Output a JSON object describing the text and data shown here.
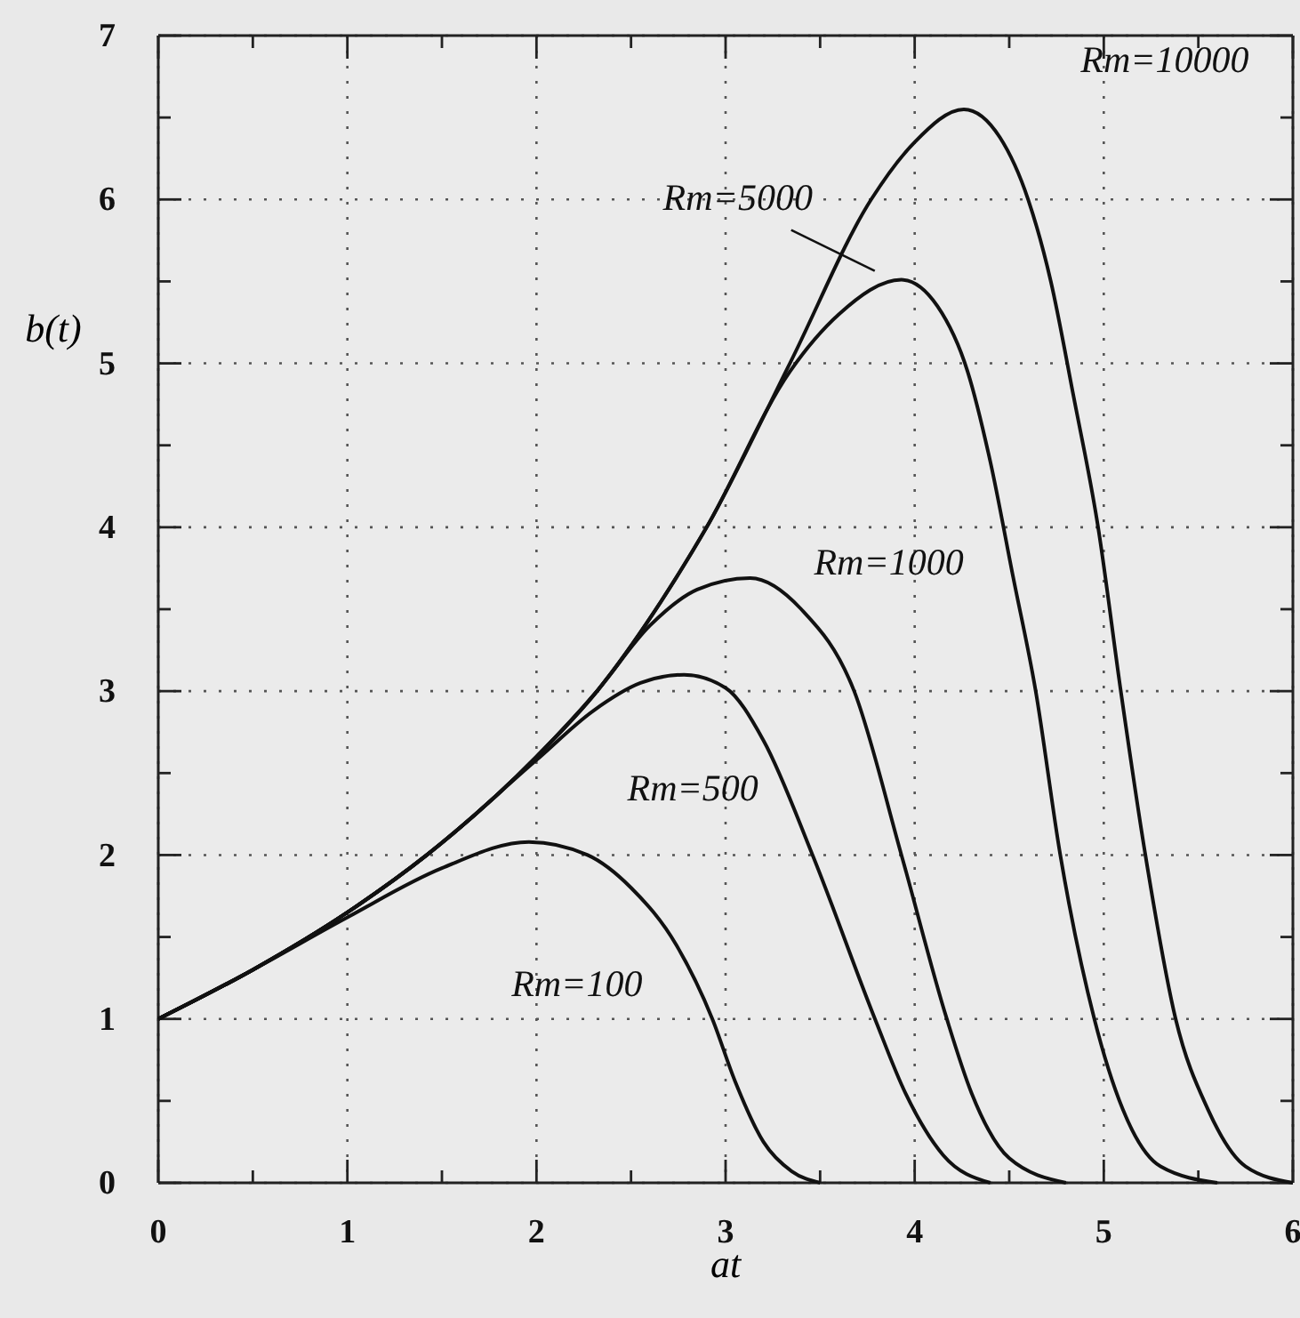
{
  "chart_data": {
    "type": "line",
    "xlabel": "at",
    "ylabel": "b(t)",
    "xlim": [
      0,
      6
    ],
    "ylim": [
      0,
      7
    ],
    "xticks": [
      0,
      {
        "value": 0.5,
        "label": null
      },
      1,
      {
        "value": 1.5,
        "label": null
      },
      2,
      {
        "value": 2.5,
        "label": null
      },
      3,
      {
        "value": 3.5,
        "label": null
      },
      4,
      {
        "value": 4.5,
        "label": null
      },
      5,
      {
        "value": 5.5,
        "label": null
      },
      6
    ],
    "yticks": [
      0,
      {
        "value": 0.5,
        "label": null
      },
      1,
      {
        "value": 1.5,
        "label": null
      },
      2,
      {
        "value": 2.5,
        "label": null
      },
      3,
      {
        "value": 3.5,
        "label": null
      },
      4,
      {
        "value": 4.5,
        "label": null
      },
      5,
      {
        "value": 5.5,
        "label": null
      },
      6,
      {
        "value": 6.5,
        "label": null
      },
      7
    ],
    "grid": true,
    "line_style": "solid",
    "marker": "none",
    "series": [
      {
        "name": "Rm=100",
        "color": "#111111",
        "x": [
          0,
          0.5,
          1,
          1.5,
          1.96,
          2.27,
          2.5,
          2.74,
          2.93,
          3.05,
          3.2,
          3.35,
          3.5
        ],
        "values": [
          1,
          1.3,
          1.62,
          1.92,
          2.08,
          2.0,
          1.8,
          1.45,
          1.0,
          0.62,
          0.25,
          0.07,
          0
        ]
      },
      {
        "name": "Rm=500",
        "color": "#111111",
        "x": [
          0,
          0.5,
          1,
          1.42,
          2,
          2.3,
          2.55,
          2.78,
          3.0,
          3.2,
          3.46,
          3.79,
          3.95,
          4.15,
          4.4
        ],
        "values": [
          1,
          1.3,
          1.65,
          2.0,
          2.58,
          2.88,
          3.05,
          3.1,
          3.02,
          2.7,
          2.0,
          1.0,
          0.55,
          0.17,
          0
        ]
      },
      {
        "name": "Rm=1000",
        "color": "#111111",
        "x": [
          0,
          0.5,
          1,
          1.42,
          2,
          2.32,
          2.6,
          2.85,
          3.13,
          3.4,
          3.68,
          3.93,
          4.17,
          4.3,
          4.5,
          4.8
        ],
        "values": [
          1,
          1.3,
          1.65,
          2.0,
          2.6,
          3.0,
          3.4,
          3.62,
          3.69,
          3.5,
          3.0,
          2.0,
          1.0,
          0.55,
          0.15,
          0
        ]
      },
      {
        "name": "Rm=5000",
        "color": "#111111",
        "x": [
          0,
          0.5,
          1,
          1.42,
          2,
          2.32,
          2.66,
          2.9,
          3.34,
          3.6,
          3.93,
          4.12,
          4.28,
          4.4,
          4.52,
          4.64,
          4.77,
          4.95,
          5.1,
          5.3,
          5.6
        ],
        "values": [
          1,
          1.3,
          1.65,
          2.0,
          2.6,
          3.0,
          3.55,
          4.0,
          4.95,
          5.3,
          5.51,
          5.35,
          4.95,
          4.4,
          3.7,
          3.0,
          2.0,
          1.0,
          0.45,
          0.1,
          0
        ]
      },
      {
        "name": "Rm=10000",
        "color": "#111111",
        "x": [
          0,
          0.5,
          1,
          1.42,
          2,
          2.32,
          2.66,
          2.9,
          3.34,
          3.77,
          4.0,
          4.26,
          4.45,
          4.6,
          4.72,
          4.84,
          4.97,
          5.09,
          5.22,
          5.38,
          5.55,
          5.75,
          6.0
        ],
        "values": [
          1,
          1.3,
          1.65,
          2.0,
          2.6,
          3.0,
          3.55,
          4.0,
          5.0,
          6.0,
          6.35,
          6.55,
          6.38,
          6.0,
          5.5,
          4.8,
          4.0,
          3.0,
          2.0,
          1.0,
          0.45,
          0.1,
          0
        ]
      }
    ]
  }
}
